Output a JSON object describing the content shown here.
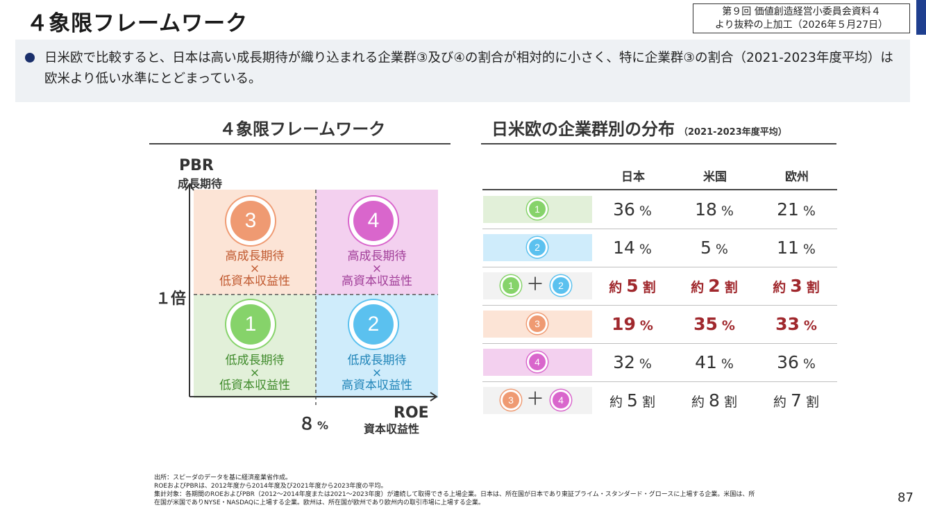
{
  "header": {
    "title": "４象限フレームワーク",
    "source_line1": "第９回 価値創造経営小委員会資料４",
    "source_line2": "より抜粋の上加工（2026年５月27日）"
  },
  "lead": {
    "text": "日米欧で比較すると、日本は高い成長期待が織り込まれる企業群③及び④の割合が相対的に小さく、特に企業群③の割合（2021-2023年度平均）は欧米より低い水準にとどまっている。"
  },
  "left_section": {
    "title": "４象限フレームワーク"
  },
  "right_section": {
    "title": "日米欧の企業群別の分布",
    "subtitle": "（2021-2023年度平均）"
  },
  "quadrant": {
    "y_axis": {
      "title": "PBR",
      "subtitle": "成長期待",
      "threshold": "１倍"
    },
    "x_axis": {
      "title": "ROE",
      "subtitle": "資本収益性",
      "threshold_value": "８",
      "threshold_unit": "%"
    },
    "cells": [
      {
        "num": "3",
        "line1": "高成長期待",
        "line2": "×",
        "line3": "低資本収益性",
        "color": "#ef9a72",
        "text_color": "#c0582e",
        "bg": "#fce4d6"
      },
      {
        "num": "4",
        "line1": "高成長期待",
        "line2": "×",
        "line3": "高資本収益性",
        "color": "#d966cc",
        "text_color": "#a03d98",
        "bg": "#f3d0ef"
      },
      {
        "num": "1",
        "line1": "低成長期待",
        "line2": "×",
        "line3": "低資本収益性",
        "color": "#86d36a",
        "text_color": "#3e8a2a",
        "bg": "#e2f0d9"
      },
      {
        "num": "2",
        "line1": "低成長期待",
        "line2": "×",
        "line3": "高資本収益性",
        "color": "#5bc1ef",
        "text_color": "#1f84b8",
        "bg": "#cfecfb"
      }
    ]
  },
  "table": {
    "columns": [
      "日本",
      "米国",
      "欧州"
    ],
    "rows": [
      {
        "label": "1",
        "cells": [
          {
            "v": "36",
            "u": "%"
          },
          {
            "v": "18",
            "u": "%"
          },
          {
            "v": "21",
            "u": "%"
          }
        ]
      },
      {
        "label": "2",
        "cells": [
          {
            "v": "14",
            "u": "%"
          },
          {
            "v": "5",
            "u": "%"
          },
          {
            "v": "11",
            "u": "%"
          }
        ]
      },
      {
        "label": "1+2",
        "cells": [
          {
            "p": "約",
            "v": "5",
            "u": "割"
          },
          {
            "p": "約",
            "v": "2",
            "u": "割"
          },
          {
            "p": "約",
            "v": "3",
            "u": "割"
          }
        ]
      },
      {
        "label": "3",
        "cells": [
          {
            "v": "19",
            "u": "%"
          },
          {
            "v": "35",
            "u": "%"
          },
          {
            "v": "33",
            "u": "%"
          }
        ]
      },
      {
        "label": "4",
        "cells": [
          {
            "v": "32",
            "u": "%"
          },
          {
            "v": "41",
            "u": "%"
          },
          {
            "v": "36",
            "u": "%"
          }
        ]
      },
      {
        "label": "3+4",
        "cells": [
          {
            "p": "約",
            "v": "5",
            "u": "割"
          },
          {
            "p": "約",
            "v": "8",
            "u": "割"
          },
          {
            "p": "約",
            "v": "7",
            "u": "割"
          }
        ]
      }
    ],
    "plus_sign": "＋"
  },
  "notes": [
    "出所：スピーダのデータを基に経済産業省作成。",
    "ROEおよびPBRは、2012年度から2014年度及び2021年度から2023年度の平均。",
    "集計対象：各期間のROEおよびPBR（2012～2014年度または2021～2023年度）が連続して取得できる上場企業。日本は、所在国が日本であり東証プライム・スタンダード・グロースに上場する企業。米国は、所",
    "在国が米国でありNYSE・NASDAQに上場する企業。欧州は、所在国が欧州であり欧州内の取引市場に上場する企業。"
  ],
  "page_number": "87"
}
